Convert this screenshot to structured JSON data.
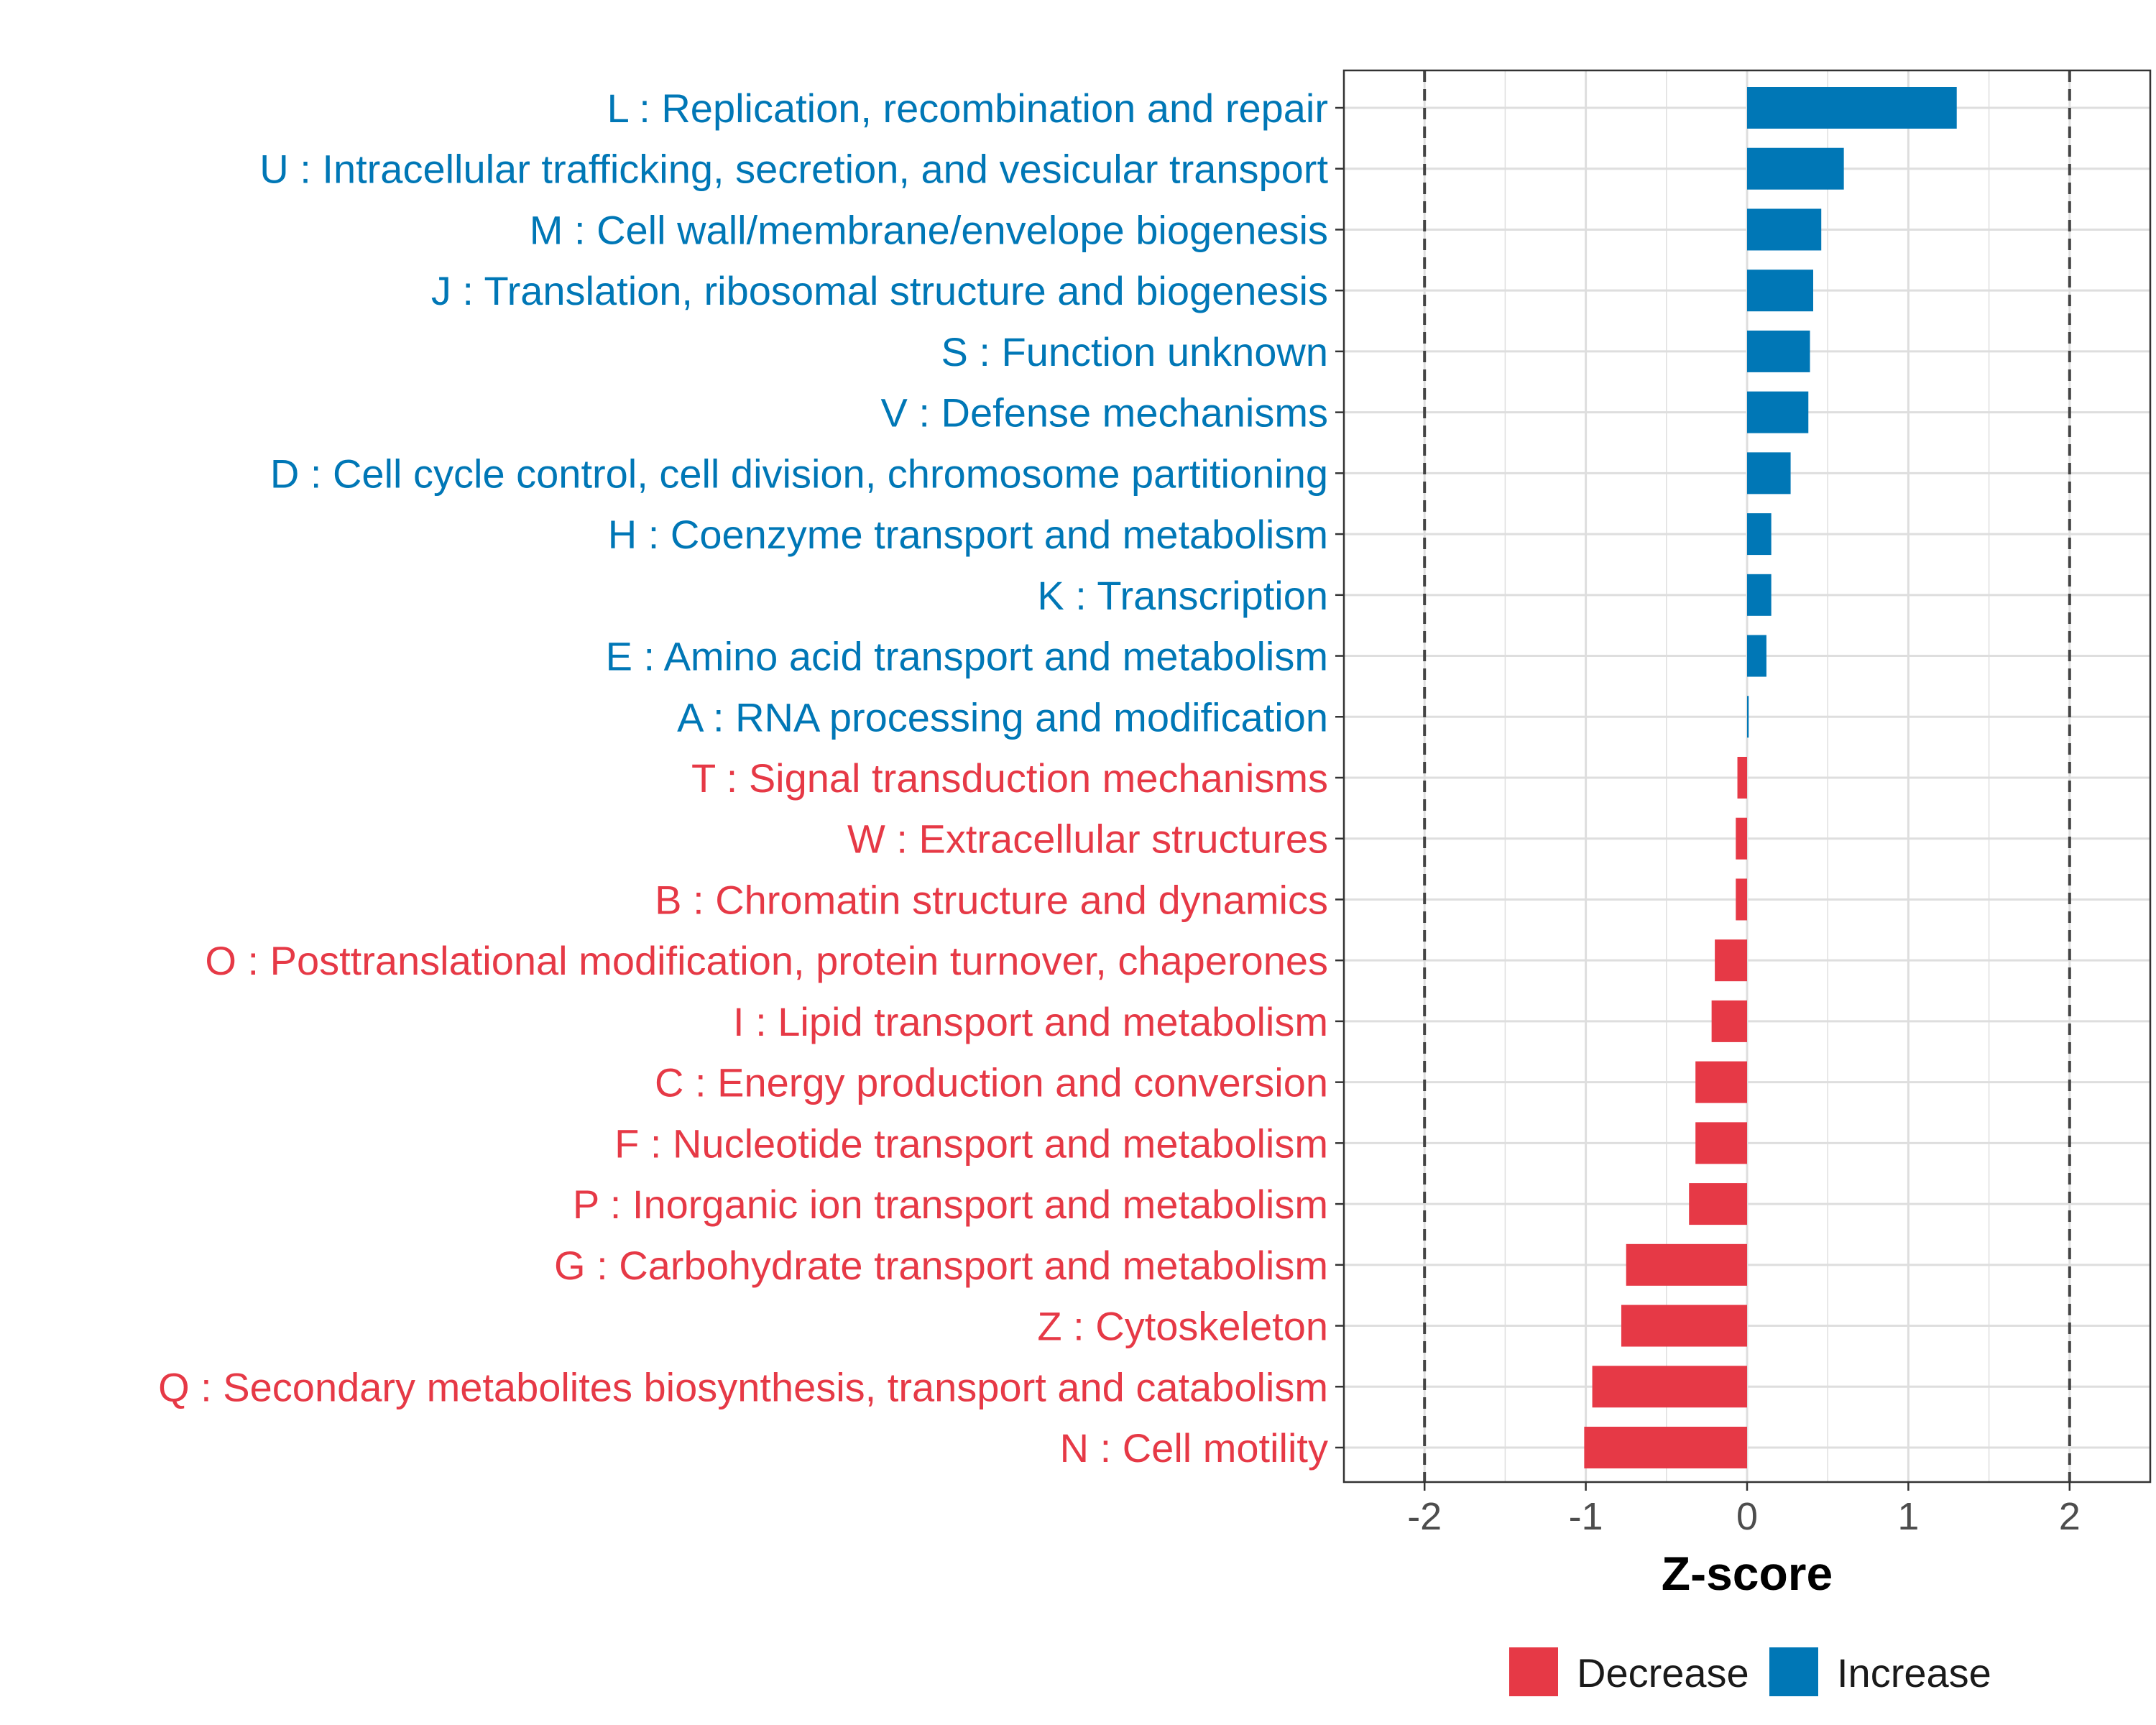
{
  "chart_data": {
    "type": "bar",
    "orientation": "horizontal",
    "xlabel": "Z-score",
    "xlim": [
      -2.5,
      2.5
    ],
    "xticks": [
      -2,
      -1,
      0,
      1,
      2
    ],
    "xtick_labels": [
      "-2",
      "-1",
      "0",
      "1",
      "2"
    ],
    "reference_lines": [
      -2,
      2
    ],
    "grid": true,
    "legend_position": "bottom",
    "colors": {
      "Decrease": "#e63946",
      "Increase": "#0077b6"
    },
    "legend": [
      {
        "name": "Decrease",
        "color": "#e63946"
      },
      {
        "name": "Increase",
        "color": "#0077b6"
      }
    ],
    "categories": [
      "L : Replication, recombination and repair",
      "U : Intracellular trafficking, secretion, and vesicular transport",
      "M : Cell wall/membrane/envelope biogenesis",
      "J : Translation, ribosomal structure and biogenesis",
      "S : Function unknown",
      "V : Defense mechanisms",
      "D : Cell cycle control, cell division, chromosome partitioning",
      "H : Coenzyme transport and metabolism",
      "K : Transcription",
      "E : Amino acid transport and metabolism",
      "A : RNA processing and modification",
      "T : Signal transduction mechanisms",
      "W : Extracellular structures",
      "B : Chromatin structure and dynamics",
      "O : Posttranslational modification, protein turnover, chaperones",
      "I : Lipid transport and metabolism",
      "C : Energy production and conversion",
      "F : Nucleotide transport and metabolism",
      "P : Inorganic ion transport and metabolism",
      "G : Carbohydrate transport and metabolism",
      "Z : Cytoskeleton",
      "Q : Secondary metabolites biosynthesis, transport and catabolism",
      "N : Cell motility"
    ],
    "values": [
      1.3,
      0.6,
      0.46,
      0.41,
      0.39,
      0.38,
      0.27,
      0.15,
      0.15,
      0.12,
      0.01,
      -0.06,
      -0.07,
      -0.07,
      -0.2,
      -0.22,
      -0.32,
      -0.32,
      -0.36,
      -0.75,
      -0.78,
      -0.96,
      -1.01
    ],
    "groups": [
      "Increase",
      "Increase",
      "Increase",
      "Increase",
      "Increase",
      "Increase",
      "Increase",
      "Increase",
      "Increase",
      "Increase",
      "Increase",
      "Decrease",
      "Decrease",
      "Decrease",
      "Decrease",
      "Decrease",
      "Decrease",
      "Decrease",
      "Decrease",
      "Decrease",
      "Decrease",
      "Decrease",
      "Decrease"
    ]
  }
}
